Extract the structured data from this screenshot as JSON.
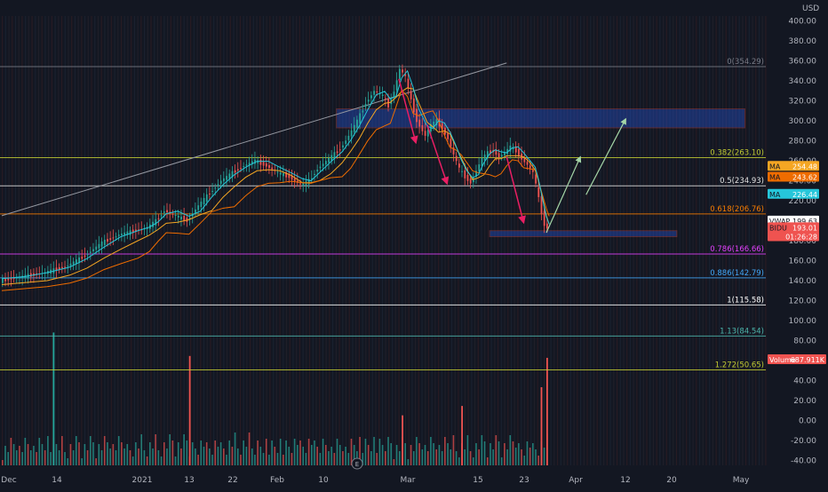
{
  "currency_label": "USD",
  "chart_data": {
    "type": "candlestick",
    "symbol": "BIDU",
    "price_axis": {
      "ticks": [
        "400.00",
        "380.00",
        "360.00",
        "340.00",
        "320.00",
        "300.00",
        "280.00",
        "260.00",
        "240.00",
        "220.00",
        "200.00",
        "180.00",
        "160.00",
        "140.00",
        "120.00",
        "100.00",
        "80.00",
        "60.00",
        "40.00",
        "20.00",
        "0.00",
        "-20.00",
        "-40.00"
      ],
      "ylim": [
        -45,
        405
      ]
    },
    "time_axis": {
      "ticks": [
        "Dec",
        "14",
        "2021",
        "13",
        "22",
        "Feb",
        "10",
        "Mar",
        "15",
        "23",
        "Apr",
        "12",
        "20",
        "May"
      ]
    },
    "fib_levels": [
      {
        "label": "0(354.29)",
        "value": 354.29,
        "color": "#787b86"
      },
      {
        "label": "0.382(263.10)",
        "value": 263.1,
        "color": "#c0ca33"
      },
      {
        "label": "0.5(234.93)",
        "value": 234.93,
        "color": "#e0e0e0"
      },
      {
        "label": "0.618(206.76)",
        "value": 206.76,
        "color": "#f57c00"
      },
      {
        "label": "0.786(166.66)",
        "value": 166.66,
        "color": "#e040fb"
      },
      {
        "label": "0.886(142.79)",
        "value": 142.79,
        "color": "#42a5f5"
      },
      {
        "label": "1(115.58)",
        "value": 115.58,
        "color": "#ffffff"
      },
      {
        "label": "1.13(84.54)",
        "value": 84.54,
        "color": "#4db6ac"
      },
      {
        "label": "1.272(50.65)",
        "value": 50.65,
        "color": "#c0ca33"
      }
    ],
    "value_tags": [
      {
        "name": "MA",
        "value": "254.48",
        "color": "#f5a623",
        "y": 254.48
      },
      {
        "name": "MA",
        "value": "243.62",
        "color": "#ef6c00",
        "y": 243.62
      },
      {
        "name": "MA",
        "value": "226.44",
        "color": "#26c6da",
        "y": 226.44
      },
      {
        "name": "VWAP",
        "value": "199.63",
        "color": "#ffffff",
        "y": 199.63
      },
      {
        "name": "BIDU",
        "value": "193.01",
        "color": "#ef5350",
        "y": 193.01
      },
      {
        "name": "",
        "value": "01:26:28",
        "color": "#ef5350",
        "y": 184
      }
    ],
    "volume_tag": {
      "name": "Volume",
      "value": "687.911K",
      "color": "#ef5350"
    },
    "price_path": [
      [
        0,
        140
      ],
      [
        8,
        144
      ],
      [
        16,
        148
      ],
      [
        24,
        155
      ],
      [
        30,
        165
      ],
      [
        36,
        178
      ],
      [
        42,
        186
      ],
      [
        48,
        190
      ],
      [
        52,
        193
      ],
      [
        55,
        200
      ],
      [
        58,
        210
      ],
      [
        62,
        205
      ],
      [
        66,
        200
      ],
      [
        70,
        215
      ],
      [
        74,
        228
      ],
      [
        78,
        240
      ],
      [
        82,
        248
      ],
      [
        86,
        255
      ],
      [
        90,
        260
      ],
      [
        94,
        255
      ],
      [
        98,
        248
      ],
      [
        102,
        244
      ],
      [
        106,
        236
      ],
      [
        109,
        240
      ],
      [
        112,
        252
      ],
      [
        116,
        262
      ],
      [
        120,
        272
      ],
      [
        123,
        285
      ],
      [
        126,
        300
      ],
      [
        129,
        318
      ],
      [
        132,
        330
      ],
      [
        135,
        325
      ],
      [
        137,
        315
      ],
      [
        139,
        330
      ],
      [
        141,
        352
      ],
      [
        143,
        344
      ],
      [
        145,
        320
      ],
      [
        147,
        300
      ],
      [
        150,
        285
      ],
      [
        152,
        296
      ],
      [
        154,
        300
      ],
      [
        156,
        292
      ],
      [
        158,
        282
      ],
      [
        160,
        266
      ],
      [
        162,
        252
      ],
      [
        164,
        244
      ],
      [
        166,
        238
      ],
      [
        168,
        250
      ],
      [
        170,
        262
      ],
      [
        172,
        268
      ],
      [
        174,
        270
      ],
      [
        176,
        264
      ],
      [
        178,
        268
      ],
      [
        180,
        274
      ],
      [
        182,
        270
      ],
      [
        184,
        262
      ],
      [
        186,
        256
      ],
      [
        188,
        248
      ],
      [
        189,
        236
      ],
      [
        190,
        222
      ],
      [
        191,
        208
      ],
      [
        192,
        196
      ],
      [
        193,
        193.01
      ]
    ],
    "volume": [
      {
        "i": 18,
        "v": 850,
        "up": true
      },
      {
        "i": 66,
        "v": 700,
        "up": false
      },
      {
        "i": 141,
        "v": 320,
        "up": false
      },
      {
        "i": 162,
        "v": 380,
        "up": false
      },
      {
        "i": 190,
        "v": 500,
        "up": false
      },
      {
        "i": 192,
        "v": 687.911,
        "up": false
      }
    ],
    "annotations": {
      "arrows_down": [
        [
          140,
          342,
          146,
          278
        ],
        [
          150,
          296,
          157,
          237
        ],
        [
          178,
          264,
          184,
          198
        ]
      ],
      "arrows_up": [
        [
          192,
          188,
          204,
          264
        ],
        [
          206,
          226,
          220,
          302
        ]
      ],
      "zones": [
        {
          "x0": 118,
          "x1": 262,
          "y0": 293,
          "y1": 312
        },
        {
          "x0": 172,
          "x1": 238,
          "y0": 184,
          "y1": 190
        }
      ],
      "trend_line": [
        [
          0,
          205
        ],
        [
          178,
          358
        ]
      ]
    }
  }
}
